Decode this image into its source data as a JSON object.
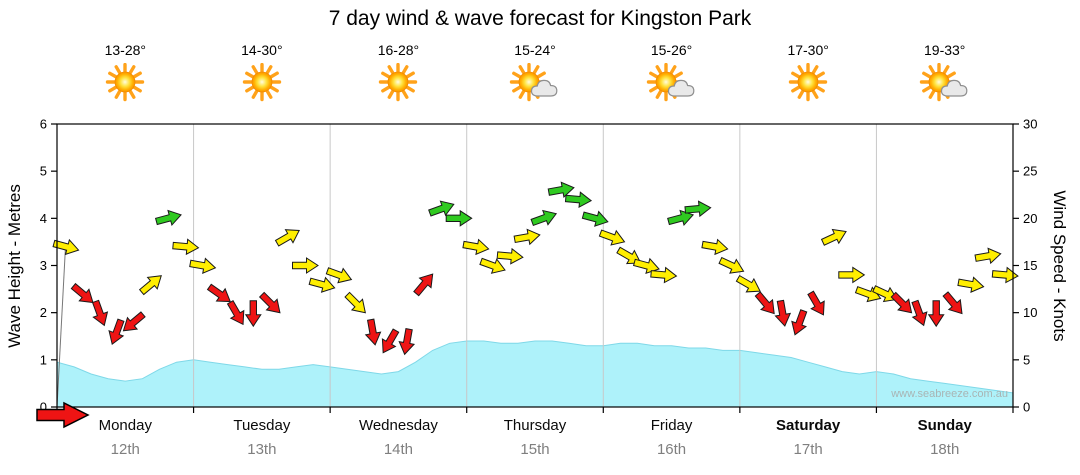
{
  "title": "7 day wind & wave forecast for Kingston Park",
  "watermark": "www.seabreeze.com.au",
  "axes": {
    "left_label": "Wave Height - Metres",
    "right_label": "Wind Speed - Knots"
  },
  "days": [
    {
      "name": "Monday",
      "date": "12th",
      "temp": "13-28°",
      "icon": "sun",
      "bold": false
    },
    {
      "name": "Tuesday",
      "date": "13th",
      "temp": "14-30°",
      "icon": "sun",
      "bold": false
    },
    {
      "name": "Wednesday",
      "date": "14th",
      "temp": "16-28°",
      "icon": "sun",
      "bold": false
    },
    {
      "name": "Thursday",
      "date": "15th",
      "temp": "15-24°",
      "icon": "sun-cloud",
      "bold": false
    },
    {
      "name": "Friday",
      "date": "16th",
      "temp": "15-26°",
      "icon": "sun-cloud",
      "bold": false
    },
    {
      "name": "Saturday",
      "date": "17th",
      "temp": "17-30°",
      "icon": "sun",
      "bold": true
    },
    {
      "name": "Sunday",
      "date": "18th",
      "temp": "19-33°",
      "icon": "sun-cloud",
      "bold": true
    }
  ],
  "colors": {
    "red": "#ee1414",
    "yellow": "#ffee00",
    "green": "#2fca20",
    "wave_fill": "#aef2fa",
    "wave_stroke": "#7fd8e8",
    "grid": "#c8c8c8",
    "axis": "#000000"
  },
  "chart_data": {
    "type": "line",
    "title": "7 day wind & wave forecast for Kingston Park",
    "legend_position": "none",
    "grid": "vertical-day-separators",
    "points_per_day": 8,
    "categories": [
      "Monday 12th",
      "Tuesday 13th",
      "Wednesday 14th",
      "Thursday 15th",
      "Friday 16th",
      "Saturday 17th",
      "Sunday 18th"
    ],
    "wave_axis": {
      "label": "Wave Height - Metres",
      "min": 0,
      "max": 6,
      "ticks": [
        0,
        1,
        2,
        3,
        4,
        5,
        6
      ],
      "unit": "m"
    },
    "wind_axis": {
      "label": "Wind Speed - Knots",
      "min": 0,
      "max": 30,
      "ticks": [
        0,
        5,
        10,
        15,
        20,
        25,
        30
      ],
      "unit": "knots"
    },
    "wave_height_m": [
      0.95,
      0.85,
      0.7,
      0.6,
      0.55,
      0.6,
      0.8,
      0.95,
      1.0,
      0.95,
      0.9,
      0.85,
      0.8,
      0.8,
      0.85,
      0.9,
      0.85,
      0.8,
      0.75,
      0.7,
      0.75,
      0.95,
      1.2,
      1.35,
      1.4,
      1.4,
      1.35,
      1.35,
      1.4,
      1.4,
      1.35,
      1.3,
      1.3,
      1.35,
      1.35,
      1.3,
      1.3,
      1.25,
      1.25,
      1.2,
      1.2,
      1.15,
      1.1,
      1.05,
      0.95,
      0.85,
      0.75,
      0.7,
      0.75,
      0.7,
      0.6,
      0.55,
      0.5,
      0.45,
      0.4,
      0.35,
      0.3
    ],
    "wind_points": [
      {
        "speed": 17,
        "dir": 15,
        "color": "yellow"
      },
      {
        "speed": 12,
        "dir": 40,
        "color": "red"
      },
      {
        "speed": 10,
        "dir": 70,
        "color": "red"
      },
      {
        "speed": 8,
        "dir": 110,
        "color": "red"
      },
      {
        "speed": 9,
        "dir": 140,
        "color": "red"
      },
      {
        "speed": 13,
        "dir": -40,
        "color": "yellow"
      },
      {
        "speed": 20,
        "dir": -15,
        "color": "green"
      },
      {
        "speed": 17,
        "dir": 5,
        "color": "yellow"
      },
      {
        "speed": 15,
        "dir": 10,
        "color": "yellow"
      },
      {
        "speed": 12,
        "dir": 35,
        "color": "red"
      },
      {
        "speed": 10,
        "dir": 60,
        "color": "red"
      },
      {
        "speed": 10,
        "dir": 90,
        "color": "red"
      },
      {
        "speed": 11,
        "dir": 45,
        "color": "red"
      },
      {
        "speed": 18,
        "dir": -30,
        "color": "yellow"
      },
      {
        "speed": 15,
        "dir": 0,
        "color": "yellow"
      },
      {
        "speed": 13,
        "dir": 15,
        "color": "yellow"
      },
      {
        "speed": 14,
        "dir": 20,
        "color": "yellow"
      },
      {
        "speed": 11,
        "dir": 45,
        "color": "yellow"
      },
      {
        "speed": 8,
        "dir": 80,
        "color": "red"
      },
      {
        "speed": 7,
        "dir": 120,
        "color": "red"
      },
      {
        "speed": 7,
        "dir": 100,
        "color": "red"
      },
      {
        "speed": 13,
        "dir": -50,
        "color": "red"
      },
      {
        "speed": 21,
        "dir": -20,
        "color": "green"
      },
      {
        "speed": 20,
        "dir": 0,
        "color": "green"
      },
      {
        "speed": 17,
        "dir": 10,
        "color": "yellow"
      },
      {
        "speed": 15,
        "dir": 20,
        "color": "yellow"
      },
      {
        "speed": 16,
        "dir": 5,
        "color": "yellow"
      },
      {
        "speed": 18,
        "dir": -10,
        "color": "yellow"
      },
      {
        "speed": 20,
        "dir": -20,
        "color": "green"
      },
      {
        "speed": 23,
        "dir": -10,
        "color": "green"
      },
      {
        "speed": 22,
        "dir": 5,
        "color": "green"
      },
      {
        "speed": 20,
        "dir": 15,
        "color": "green"
      },
      {
        "speed": 18,
        "dir": 20,
        "color": "yellow"
      },
      {
        "speed": 16,
        "dir": 30,
        "color": "yellow"
      },
      {
        "speed": 15,
        "dir": 15,
        "color": "yellow"
      },
      {
        "speed": 14,
        "dir": 5,
        "color": "yellow"
      },
      {
        "speed": 20,
        "dir": -15,
        "color": "green"
      },
      {
        "speed": 21,
        "dir": -5,
        "color": "green"
      },
      {
        "speed": 17,
        "dir": 10,
        "color": "yellow"
      },
      {
        "speed": 15,
        "dir": 25,
        "color": "yellow"
      },
      {
        "speed": 13,
        "dir": 30,
        "color": "yellow"
      },
      {
        "speed": 11,
        "dir": 50,
        "color": "red"
      },
      {
        "speed": 10,
        "dir": 80,
        "color": "red"
      },
      {
        "speed": 9,
        "dir": 110,
        "color": "red"
      },
      {
        "speed": 11,
        "dir": 60,
        "color": "red"
      },
      {
        "speed": 18,
        "dir": -25,
        "color": "yellow"
      },
      {
        "speed": 14,
        "dir": 0,
        "color": "yellow"
      },
      {
        "speed": 12,
        "dir": 20,
        "color": "yellow"
      },
      {
        "speed": 12,
        "dir": 25,
        "color": "yellow"
      },
      {
        "speed": 11,
        "dir": 45,
        "color": "red"
      },
      {
        "speed": 10,
        "dir": 70,
        "color": "red"
      },
      {
        "speed": 10,
        "dir": 90,
        "color": "red"
      },
      {
        "speed": 11,
        "dir": 50,
        "color": "red"
      },
      {
        "speed": 13,
        "dir": 10,
        "color": "yellow"
      },
      {
        "speed": 16,
        "dir": -10,
        "color": "yellow"
      },
      {
        "speed": 14,
        "dir": 5,
        "color": "yellow"
      }
    ]
  }
}
